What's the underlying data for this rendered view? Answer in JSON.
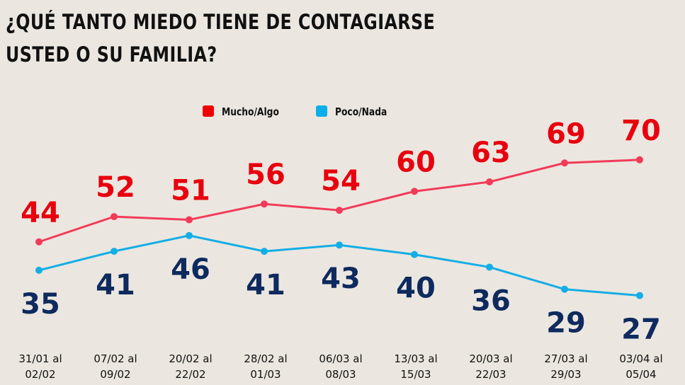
{
  "chart_data": {
    "type": "line",
    "title": "¿QUÉ TANTO MIEDO TIENE DE CONTAGIARSE USTED O SU FAMILIA?",
    "title_lines": [
      "¿QUÉ TANTO MIEDO TIENE DE CONTAGIARSE",
      "USTED O SU FAMILIA?"
    ],
    "categories": [
      [
        "31/01 al",
        "02/02"
      ],
      [
        "07/02 al",
        "09/02"
      ],
      [
        "20/02 al",
        "22/02"
      ],
      [
        "28/02 al",
        "01/03"
      ],
      [
        "06/03 al",
        "08/03"
      ],
      [
        "13/03 al",
        "15/03"
      ],
      [
        "20/03 al",
        "22/03"
      ],
      [
        "27/03 al",
        "29/03"
      ],
      [
        "03/04 al",
        "05/04"
      ]
    ],
    "series": [
      {
        "name": "Mucho/Algo",
        "values": [
          44,
          52,
          51,
          56,
          54,
          60,
          63,
          69,
          70
        ],
        "line_color": "#f23b58",
        "label_color": "#e8000e",
        "legend_color": "#ee0000"
      },
      {
        "name": "Poco/Nada",
        "values": [
          35,
          41,
          46,
          41,
          43,
          40,
          36,
          29,
          27
        ],
        "line_color": "#14aee6",
        "label_color": "#0e2a5e",
        "legend_color": "#0aaeea"
      }
    ],
    "legend_position": "top-center",
    "grid": false,
    "data_labels": true
  }
}
